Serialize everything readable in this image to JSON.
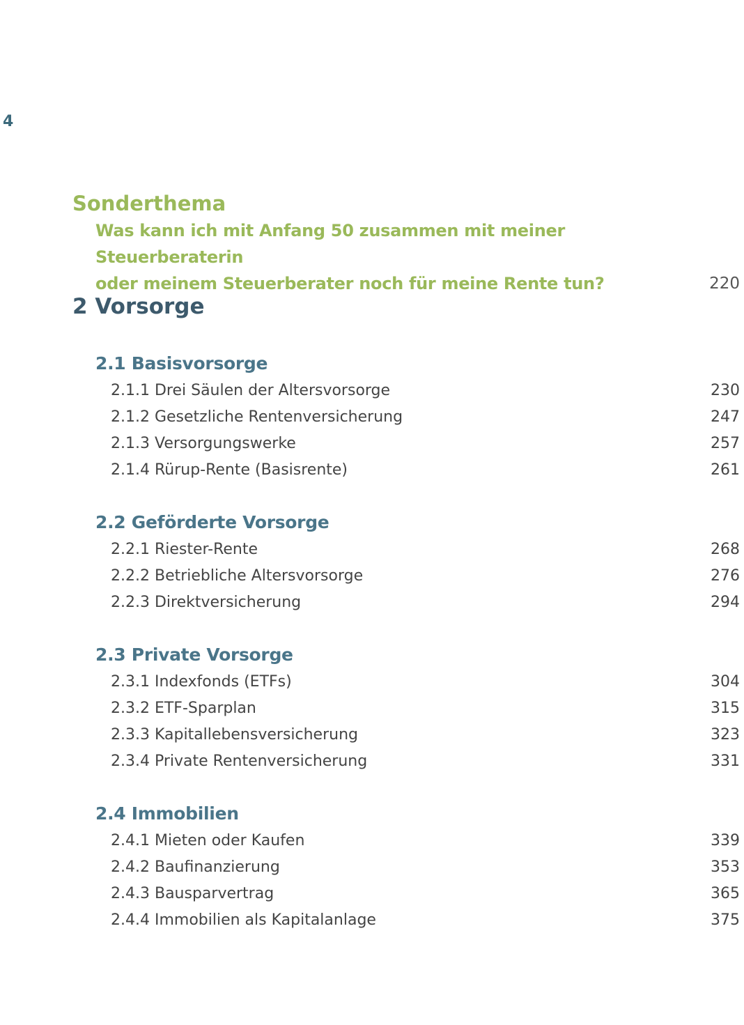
{
  "page_number": "4",
  "special": {
    "title": "Sonderthema",
    "line1": "Was kann ich mit Anfang 50 zusammen mit meiner Steuerberaterin",
    "line2": "oder meinem Steuerberater noch für meine Rente tun?",
    "page": "220"
  },
  "chapter": "2 Vorsorge",
  "sections": [
    {
      "title": "2.1 Basisvorsorge",
      "entries": [
        {
          "label": "2.1.1 Drei Säulen der Altersvorsorge",
          "page": "230"
        },
        {
          "label": "2.1.2 Gesetzliche Rentenversicherung",
          "page": "247"
        },
        {
          "label": "2.1.3 Versorgungswerke",
          "page": "257"
        },
        {
          "label": "2.1.4 Rürup-Rente (Basisrente)",
          "page": "261"
        }
      ]
    },
    {
      "title": "2.2 Geförderte Vorsorge",
      "entries": [
        {
          "label": "2.2.1 Riester-Rente",
          "page": "268"
        },
        {
          "label": "2.2.2 Betriebliche Altersvorsorge",
          "page": "276"
        },
        {
          "label": "2.2.3 Direktversicherung",
          "page": "294"
        }
      ]
    },
    {
      "title": "2.3 Private Vorsorge",
      "entries": [
        {
          "label": "2.3.1 Indexfonds (ETFs)",
          "page": "304"
        },
        {
          "label": "2.3.2 ETF-Sparplan",
          "page": "315"
        },
        {
          "label": "2.3.3 Kapitallebensversicherung",
          "page": "323"
        },
        {
          "label": "2.3.4 Private Rentenversicherung",
          "page": "331"
        }
      ]
    },
    {
      "title": "2.4 Immobilien",
      "entries": [
        {
          "label": "2.4.1 Mieten oder Kaufen",
          "page": "339"
        },
        {
          "label": "2.4.2 Baufinanzierung",
          "page": "353"
        },
        {
          "label": "2.4.3 Bausparvertrag",
          "page": "365"
        },
        {
          "label": "2.4.4 Immobilien als Kapitalanlage",
          "page": "375"
        }
      ]
    }
  ]
}
